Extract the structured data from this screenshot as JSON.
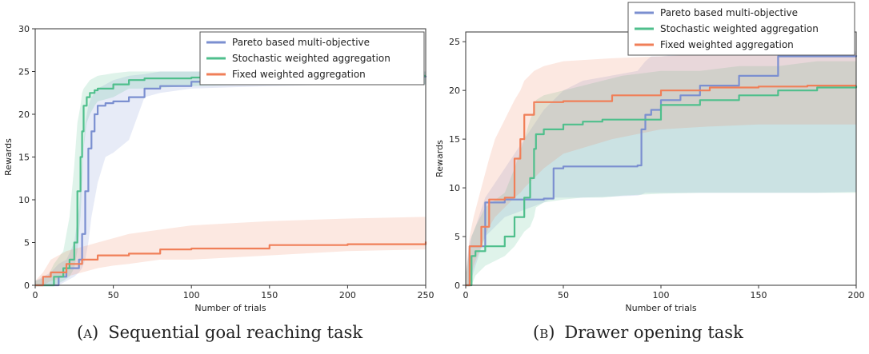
{
  "captions": [
    {
      "tag": "(a)",
      "text": "Sequential goal reaching task"
    },
    {
      "tag": "(b)",
      "text": "Drawer opening task"
    }
  ],
  "colors": {
    "pareto": "#7b8fd0",
    "stochastic": "#4fbf8c",
    "fixed": "#f07f58"
  },
  "chart_data": [
    {
      "type": "line",
      "xlabel": "Number of trials",
      "ylabel": "Rewards",
      "xlim": [
        0,
        250
      ],
      "ylim": [
        0,
        30
      ],
      "xticks": [
        0,
        50,
        100,
        150,
        200,
        250
      ],
      "yticks": [
        0,
        5,
        10,
        15,
        20,
        25,
        30
      ],
      "legend_position": "top-right",
      "grid": false,
      "series": [
        {
          "name": "Pareto based multi-objective",
          "color": "#7b8fd0",
          "x": [
            0,
            10,
            15,
            20,
            25,
            28,
            30,
            32,
            34,
            36,
            38,
            40,
            45,
            50,
            60,
            70,
            80,
            100,
            150,
            200,
            250
          ],
          "y": [
            0,
            0,
            1,
            2,
            2,
            3,
            6,
            11,
            16,
            18,
            20,
            21,
            21.3,
            21.5,
            22,
            23,
            23.3,
            23.8,
            24.3,
            24.4,
            24.5
          ],
          "lower": [
            0,
            0,
            0,
            0.5,
            1,
            1.5,
            2,
            3,
            5,
            8,
            10,
            12,
            15,
            15.5,
            17,
            22,
            22.5,
            23,
            23.3,
            23.5,
            23.5
          ],
          "upper": [
            0.5,
            1.5,
            2.5,
            3,
            5,
            9,
            14,
            19,
            21,
            22,
            22.5,
            23,
            23.5,
            24,
            24.5,
            24.7,
            25,
            25,
            25,
            25,
            25
          ]
        },
        {
          "name": "Stochastic weighted aggregation",
          "color": "#4fbf8c",
          "x": [
            0,
            8,
            12,
            18,
            22,
            25,
            27,
            29,
            30,
            31,
            33,
            35,
            38,
            40,
            50,
            60,
            70,
            100,
            150,
            200,
            250
          ],
          "y": [
            0,
            0,
            1,
            2,
            3,
            5,
            11,
            15,
            18,
            21,
            22,
            22.5,
            22.8,
            23,
            23.5,
            24,
            24.2,
            24.3,
            24.4,
            24.5,
            24.5
          ],
          "lower": [
            0,
            0,
            0,
            0.5,
            1,
            2,
            4,
            8,
            12,
            16,
            19,
            20,
            21,
            21.5,
            22,
            23,
            23,
            23.3,
            23.5,
            23.5,
            23.5
          ],
          "upper": [
            0.5,
            1,
            2.5,
            4,
            8,
            14,
            19,
            21,
            22.5,
            23,
            23.5,
            24,
            24.3,
            24.5,
            24.8,
            25,
            25,
            25,
            25,
            25,
            25
          ]
        },
        {
          "name": "Fixed weighted aggregation",
          "color": "#f07f58",
          "x": [
            0,
            5,
            10,
            20,
            30,
            40,
            50,
            60,
            80,
            100,
            150,
            200,
            250
          ],
          "y": [
            0,
            1,
            1.5,
            2.5,
            3,
            3.5,
            3.5,
            3.7,
            4.2,
            4.3,
            4.7,
            4.8,
            5.1
          ],
          "lower": [
            0,
            0,
            0.5,
            1,
            1.5,
            2,
            2.3,
            2.5,
            3,
            3,
            3.5,
            4,
            4.2
          ],
          "upper": [
            0.5,
            1.5,
            3,
            4,
            4.5,
            5,
            5.5,
            6,
            6.5,
            7,
            7.5,
            7.8,
            8
          ]
        }
      ]
    },
    {
      "type": "line",
      "xlabel": "Number of trials",
      "ylabel": "Rewards",
      "xlim": [
        0,
        200
      ],
      "ylim": [
        0,
        26
      ],
      "xticks": [
        0,
        50,
        100,
        150,
        200
      ],
      "yticks": [
        0,
        5,
        10,
        15,
        20,
        25
      ],
      "legend_position": "top-right",
      "grid": false,
      "series": [
        {
          "name": "Pareto based multi-objective",
          "color": "#7b8fd0",
          "x": [
            0,
            2,
            5,
            10,
            20,
            40,
            45,
            50,
            60,
            88,
            90,
            92,
            95,
            100,
            110,
            120,
            140,
            160,
            180,
            200
          ],
          "y": [
            0,
            4,
            4,
            8.5,
            8.8,
            8.9,
            12,
            12.2,
            12.2,
            12.3,
            16,
            17.5,
            18,
            19,
            19.5,
            20.5,
            21.5,
            23.5,
            23.5,
            23.6
          ],
          "lower": [
            0,
            0,
            2,
            5,
            7,
            8.5,
            9,
            9,
            9,
            9.2,
            9.3,
            9.5,
            9.5,
            9.5,
            9.5,
            9.5,
            9.5,
            9.5,
            9.5,
            9.6
          ],
          "upper": [
            1,
            4.5,
            6,
            9,
            12,
            18,
            19,
            20,
            21,
            22,
            22.5,
            23,
            23.5,
            23.5,
            23.7,
            24,
            24,
            24,
            24,
            24
          ]
        },
        {
          "name": "Stochastic weighted aggregation",
          "color": "#4fbf8c",
          "x": [
            0,
            3,
            5,
            10,
            20,
            25,
            30,
            33,
            35,
            36,
            40,
            50,
            60,
            70,
            80,
            100,
            120,
            140,
            160,
            180,
            200
          ],
          "y": [
            0,
            3,
            3.5,
            4,
            5,
            7,
            9,
            11,
            14,
            15.5,
            16,
            16.5,
            16.8,
            17,
            17,
            18.5,
            19,
            19.5,
            20,
            20.3,
            20.5
          ],
          "lower": [
            0,
            0,
            1,
            2,
            3,
            4,
            5.5,
            6,
            7,
            8,
            8.5,
            8.8,
            9,
            9,
            9.2,
            9.4,
            9.5,
            9.5,
            9.5,
            9.5,
            9.5
          ],
          "upper": [
            1,
            5,
            6,
            8,
            9.5,
            12,
            15,
            17,
            18,
            19,
            19.5,
            20,
            20.5,
            21,
            21.5,
            22,
            22,
            22.5,
            22.5,
            23,
            23
          ]
        },
        {
          "name": "Fixed weighted aggregation",
          "color": "#f07f58",
          "x": [
            0,
            2,
            4,
            8,
            12,
            15,
            20,
            25,
            28,
            30,
            35,
            40,
            50,
            75,
            100,
            125,
            150,
            175,
            200
          ],
          "y": [
            0,
            4,
            4,
            6,
            8.8,
            8.8,
            9,
            13,
            15,
            17.5,
            18.8,
            18.8,
            18.9,
            19.5,
            20,
            20.3,
            20.4,
            20.5,
            20.5
          ],
          "lower": [
            0,
            0,
            2,
            4,
            6,
            7,
            8,
            9,
            9.5,
            10,
            11,
            12,
            13.5,
            15,
            16,
            16.3,
            16.5,
            16.5,
            16.5
          ],
          "upper": [
            1,
            5,
            7,
            10,
            13,
            15,
            17,
            19,
            20,
            21,
            22,
            22.5,
            23,
            23.3,
            23.5,
            23.7,
            23.8,
            23.8,
            23.8
          ]
        }
      ]
    }
  ]
}
